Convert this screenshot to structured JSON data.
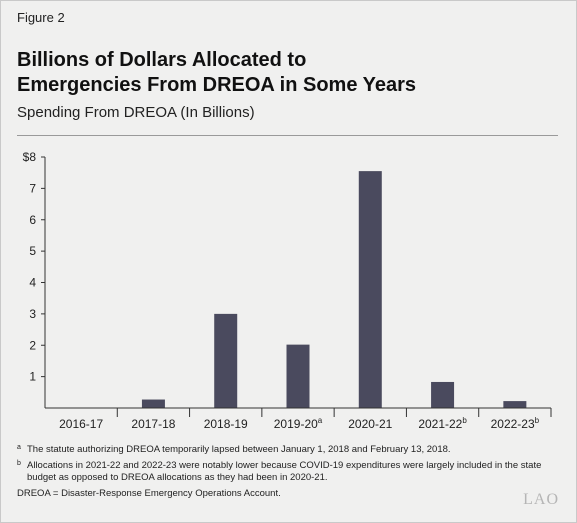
{
  "figure_label": "Figure 2",
  "title_line1": "Billions of Dollars Allocated to",
  "title_line2": "Emergencies From DREOA in Some Years",
  "subtitle": "Spending From DREOA (In Billions)",
  "chart_data": {
    "type": "bar",
    "categories": [
      "2016-17",
      "2017-18",
      "2018-19",
      "2019-20",
      "2020-21",
      "2021-22",
      "2022-23"
    ],
    "category_superscripts": [
      "",
      "",
      "",
      "a",
      "",
      "b",
      "b"
    ],
    "values": [
      0,
      0.27,
      3.0,
      2.02,
      7.55,
      0.83,
      0.22
    ],
    "y_ticks": [
      "1",
      "2",
      "3",
      "4",
      "5",
      "6",
      "7",
      "$8"
    ],
    "ylim": [
      0,
      8
    ],
    "bar_color": "#4a4a5e"
  },
  "footnotes": [
    {
      "mark": "a",
      "text": "The statute authorizing DREOA temporarily lapsed between January 1, 2018 and February 13, 2018."
    },
    {
      "mark": "b",
      "text": "Allocations in 2021-22 and 2022-23 were notably lower because COVID-19 expenditures were largely included in the state budget as opposed to DREOA allocations as they had been in 2020-21."
    }
  ],
  "definition": "DREOA = Disaster-Response Emergency Operations Account.",
  "logo_text": "LAO"
}
